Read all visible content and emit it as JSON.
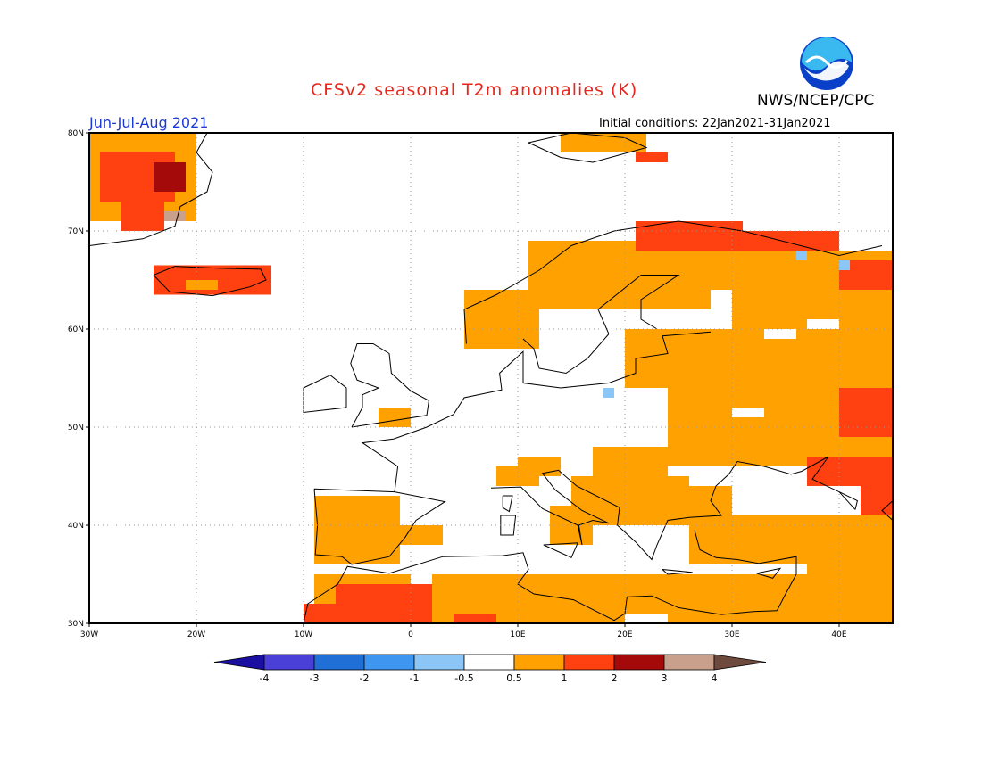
{
  "title": "CFSv2 seasonal T2m anomalies (K)",
  "agency": "NWS/NCEP/CPC",
  "logo_text": "NOAA",
  "season": "Jun-Jul-Aug 2021",
  "initial_conditions": "Initial conditions: 22Jan2021-31Jan2021",
  "map": {
    "lon_range": [
      -30,
      45
    ],
    "lat_range": [
      30,
      80
    ],
    "lon_ticks": [
      "30W",
      "20W",
      "10W",
      "0",
      "10E",
      "20E",
      "30E",
      "40E"
    ],
    "lat_ticks": [
      "80N",
      "70N",
      "60N",
      "50N",
      "40N",
      "30N"
    ],
    "grid": "dotted"
  },
  "colorbar": {
    "tick_labels": [
      "-4",
      "-3",
      "-2",
      "-1",
      "-0.5",
      "0.5",
      "1",
      "2",
      "3",
      "4"
    ],
    "colors": [
      "#1a0fa0",
      "#4a3fd6",
      "#1f6fd6",
      "#3f96f0",
      "#8cc6f6",
      "#ffffff",
      "#ffa100",
      "#ff4010",
      "#a50a0a",
      "#c8a08c",
      "#6e4a3c"
    ]
  }
}
